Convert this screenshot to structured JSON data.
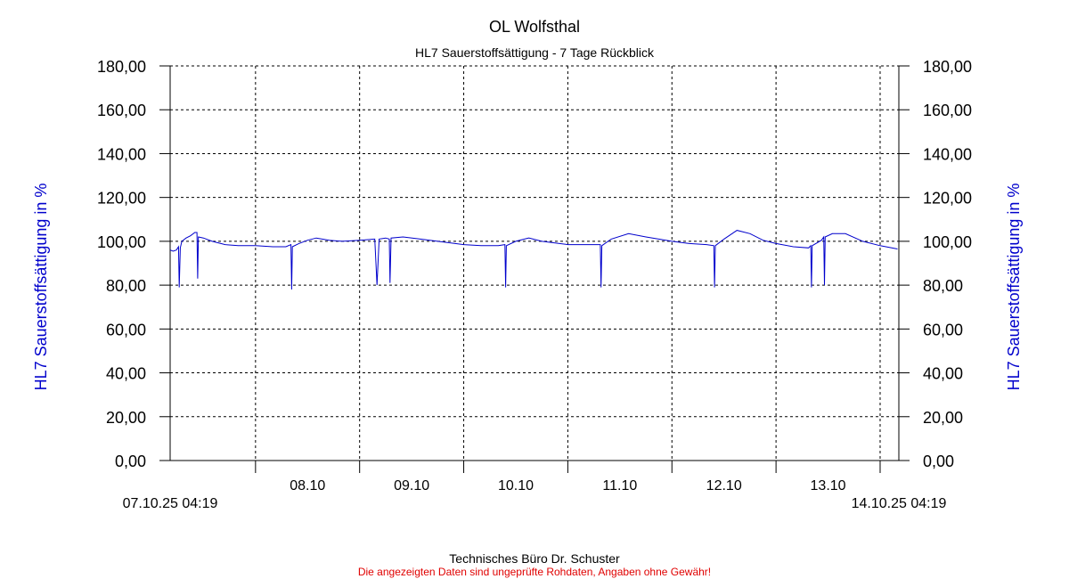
{
  "chart_data": {
    "type": "line",
    "title": "OL Wolfsthal",
    "subtitle": "HL7 Sauerstoffsättigung - 7 Tage Rückblick",
    "ylabel_left": "HL7 Sauerstoffsättigung in %",
    "ylabel_right": "HL7 Sauerstoffsättigung in %",
    "ylim": [
      0,
      180
    ],
    "y_ticks": [
      "0,00",
      "20,00",
      "40,00",
      "60,00",
      "80,00",
      "100,00",
      "120,00",
      "140,00",
      "160,00",
      "180,00"
    ],
    "x_start_label": "07.10.25 04:19",
    "x_end_label": "14.10.25 04:19",
    "x_start": "2025-10-07T04:19",
    "x_end": "2025-10-14T04:19",
    "x_ticks": [
      {
        "label": "08.10",
        "date": "2025-10-08T00:00"
      },
      {
        "label": "09.10",
        "date": "2025-10-09T00:00"
      },
      {
        "label": "10.10",
        "date": "2025-10-10T00:00"
      },
      {
        "label": "11.10",
        "date": "2025-10-11T00:00"
      },
      {
        "label": "12.10",
        "date": "2025-10-12T00:00"
      },
      {
        "label": "13.10",
        "date": "2025-10-13T00:00"
      },
      {
        "label": "",
        "date": "2025-10-14T00:00"
      }
    ],
    "grid": true,
    "series": [
      {
        "color": "#0000cc",
        "points": [
          [
            "2025-10-07T04:19",
            96
          ],
          [
            "2025-10-07T05:00",
            95.5
          ],
          [
            "2025-10-07T05:45",
            96
          ],
          [
            "2025-10-07T06:15",
            97.5
          ],
          [
            "2025-10-07T06:25",
            79
          ],
          [
            "2025-10-07T06:40",
            97
          ],
          [
            "2025-10-07T07:00",
            100
          ],
          [
            "2025-10-07T08:00",
            101.5
          ],
          [
            "2025-10-07T09:00",
            102.5
          ],
          [
            "2025-10-07T10:00",
            104
          ],
          [
            "2025-10-07T10:30",
            104
          ],
          [
            "2025-10-07T10:40",
            83
          ],
          [
            "2025-10-07T10:50",
            102
          ],
          [
            "2025-10-07T12:00",
            101.5
          ],
          [
            "2025-10-07T14:00",
            100
          ],
          [
            "2025-10-07T17:00",
            98.5
          ],
          [
            "2025-10-07T20:00",
            98
          ],
          [
            "2025-10-08T00:00",
            98
          ],
          [
            "2025-10-08T04:00",
            97.5
          ],
          [
            "2025-10-08T07:00",
            97.5
          ],
          [
            "2025-10-08T08:10",
            98.5
          ],
          [
            "2025-10-08T08:20",
            78
          ],
          [
            "2025-10-08T08:30",
            97.5
          ],
          [
            "2025-10-08T10:00",
            99
          ],
          [
            "2025-10-08T12:00",
            100.5
          ],
          [
            "2025-10-08T14:00",
            101.5
          ],
          [
            "2025-10-08T17:00",
            100.5
          ],
          [
            "2025-10-08T20:00",
            100
          ],
          [
            "2025-10-09T00:00",
            100.5
          ],
          [
            "2025-10-09T03:30",
            101
          ],
          [
            "2025-10-09T04:00",
            80
          ],
          [
            "2025-10-09T04:30",
            101
          ],
          [
            "2025-10-09T06:00",
            101.5
          ],
          [
            "2025-10-09T06:50",
            101
          ],
          [
            "2025-10-09T07:00",
            81
          ],
          [
            "2025-10-09T07:15",
            101.5
          ],
          [
            "2025-10-09T10:00",
            102
          ],
          [
            "2025-10-09T14:00",
            101
          ],
          [
            "2025-10-09T18:00",
            100
          ],
          [
            "2025-10-10T00:00",
            98.5
          ],
          [
            "2025-10-10T04:00",
            98
          ],
          [
            "2025-10-10T08:00",
            98
          ],
          [
            "2025-10-10T09:30",
            98.5
          ],
          [
            "2025-10-10T09:40",
            79
          ],
          [
            "2025-10-10T09:50",
            98
          ],
          [
            "2025-10-10T12:00",
            100
          ],
          [
            "2025-10-10T15:00",
            101.5
          ],
          [
            "2025-10-10T18:00",
            100
          ],
          [
            "2025-10-11T00:00",
            98.5
          ],
          [
            "2025-10-11T05:00",
            98.5
          ],
          [
            "2025-10-11T07:30",
            98.5
          ],
          [
            "2025-10-11T07:40",
            79
          ],
          [
            "2025-10-11T07:50",
            98
          ],
          [
            "2025-10-11T10:00",
            101
          ],
          [
            "2025-10-11T14:00",
            103.5
          ],
          [
            "2025-10-11T18:00",
            102
          ],
          [
            "2025-10-12T00:00",
            100
          ],
          [
            "2025-10-12T04:00",
            99
          ],
          [
            "2025-10-12T08:00",
            98.5
          ],
          [
            "2025-10-12T09:40",
            98
          ],
          [
            "2025-10-12T09:50",
            79
          ],
          [
            "2025-10-12T10:00",
            98
          ],
          [
            "2025-10-12T12:00",
            101
          ],
          [
            "2025-10-12T15:00",
            105
          ],
          [
            "2025-10-12T18:00",
            103.5
          ],
          [
            "2025-10-12T21:00",
            100.5
          ],
          [
            "2025-10-13T00:00",
            99
          ],
          [
            "2025-10-13T04:00",
            97.5
          ],
          [
            "2025-10-13T07:30",
            97
          ],
          [
            "2025-10-13T08:00",
            98
          ],
          [
            "2025-10-13T08:10",
            79
          ],
          [
            "2025-10-13T08:20",
            98
          ],
          [
            "2025-10-13T10:30",
            100.5
          ],
          [
            "2025-10-13T11:00",
            102
          ],
          [
            "2025-10-13T11:10",
            80
          ],
          [
            "2025-10-13T11:20",
            102
          ],
          [
            "2025-10-13T13:00",
            103.5
          ],
          [
            "2025-10-13T16:00",
            103.5
          ],
          [
            "2025-10-13T20:00",
            100
          ],
          [
            "2025-10-14T00:00",
            98
          ],
          [
            "2025-10-14T04:00",
            96.5
          ]
        ]
      }
    ]
  },
  "footer": {
    "company": "Technisches Büro Dr. Schuster",
    "disclaimer": "Die angezeigten Daten sind ungeprüfte Rohdaten, Angaben ohne Gewähr!"
  },
  "colors": {
    "series": "#0000cc",
    "axis_title": "#0000cc",
    "disclaimer": "#e00000",
    "grid": "#000000"
  }
}
